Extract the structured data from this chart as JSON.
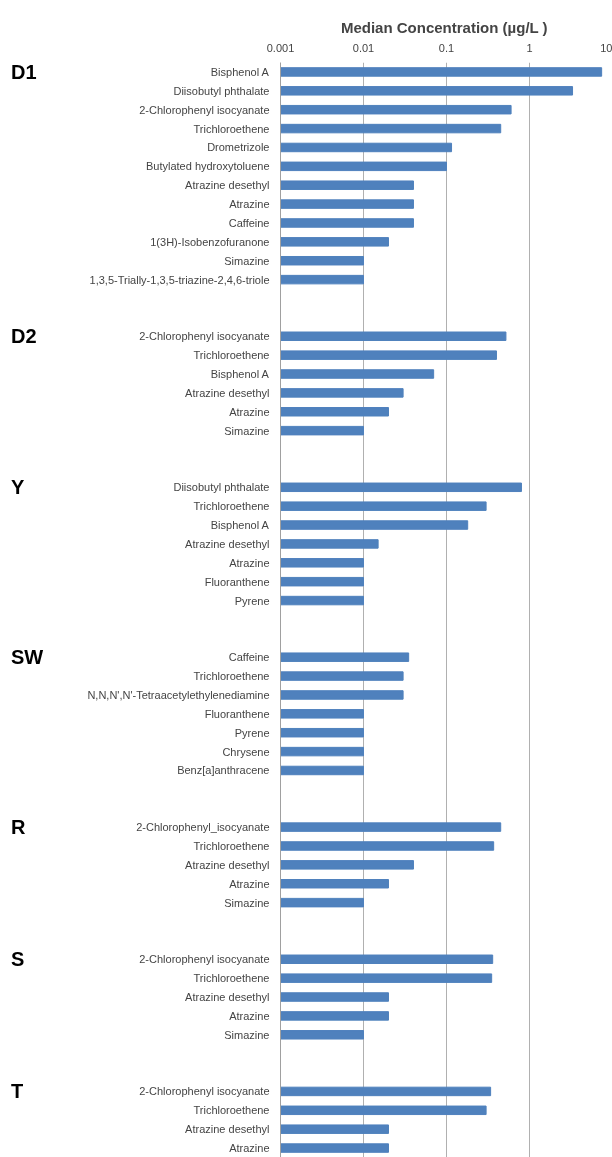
{
  "chart_data": {
    "type": "bar",
    "orientation": "horizontal",
    "log": "x",
    "xlabel": "Median Concentration  (µg/L )",
    "categories": [
      "Bisphenol A",
      "Diisobutyl phthalate",
      "2-Chlorophenyl isocyanate",
      "Trichloroethene",
      "Drometrizole",
      "Butylated hydroxytoluene",
      "Atrazine desethyl",
      "Atrazine",
      "Caffeine",
      "1(3H)-Isobenzofuranone",
      "Simazine",
      "1,3,5-Trially-1,3,5-triazine-2,4,6-triole",
      null,
      null,
      "2-Chlorophenyl isocyanate",
      "Trichloroethene",
      "Bisphenol A",
      "Atrazine desethyl",
      "Atrazine",
      "Simazine",
      null,
      null,
      "Diisobutyl phthalate",
      "Trichloroethene",
      "Bisphenol A",
      "Atrazine desethyl",
      "Atrazine",
      "Fluoranthene",
      "Pyrene",
      null,
      null,
      "Caffeine",
      "Trichloroethene",
      "N,N,N',N'-Tetraacetylethylenediamine",
      "Fluoranthene",
      "Pyrene",
      "Chrysene",
      "Benz[a]anthracene",
      null,
      null,
      "2-Chlorophenyl_isocyanate",
      "Trichloroethene",
      "Atrazine desethyl",
      "Atrazine",
      "Simazine",
      null,
      null,
      "2-Chlorophenyl isocyanate",
      "Trichloroethene",
      "Atrazine desethyl",
      "Atrazine",
      "Simazine",
      null,
      null,
      "2-Chlorophenyl isocyanate",
      "Trichloroethene",
      "Atrazine desethyl",
      "Atrazine"
    ],
    "values": [
      7.4,
      3.3,
      0.6,
      0.45,
      0.115,
      0.1,
      0.04,
      0.04,
      0.04,
      0.02,
      0.01,
      0.01,
      null,
      null,
      0.52,
      0.4,
      0.07,
      0.03,
      0.02,
      0.01,
      null,
      null,
      0.8,
      0.3,
      0.18,
      0.015,
      0.01,
      0.01,
      0.01,
      null,
      null,
      0.035,
      0.03,
      0.03,
      0.01,
      0.01,
      0.01,
      0.01,
      null,
      null,
      0.45,
      0.37,
      0.04,
      0.02,
      0.01,
      null,
      null,
      0.36,
      0.35,
      0.02,
      0.02,
      0.01,
      null,
      null,
      0.34,
      0.3,
      0.02,
      0.02
    ],
    "color": "#4f81bd",
    "xlim": [
      0.001,
      10
    ],
    "xticks": [
      0.001,
      0.01,
      0.1,
      1,
      10
    ],
    "grid": "x",
    "annotations": [
      "D1",
      "D2",
      "Y",
      "SW",
      "R",
      "S",
      "T"
    ]
  }
}
